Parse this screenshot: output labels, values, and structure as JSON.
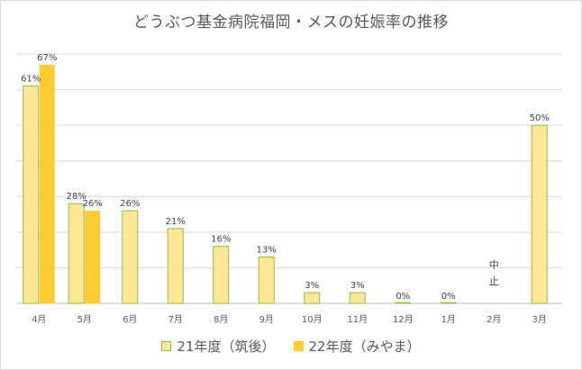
{
  "chart_data": {
    "type": "bar",
    "title": "どうぶつ基金病院福岡・メスの妊娠率の推移",
    "categories": [
      "4月",
      "5月",
      "6月",
      "7月",
      "8月",
      "9月",
      "10月",
      "11月",
      "12月",
      "1月",
      "2月",
      "3月"
    ],
    "series": [
      {
        "name": "21年度（筑後）",
        "color": "#ffe699",
        "border": "#8cbf3f",
        "values": [
          61,
          28,
          26,
          21,
          16,
          13,
          3,
          3,
          0,
          0,
          null,
          50
        ],
        "labels": [
          "61%",
          "28%",
          "26%",
          "21%",
          "16%",
          "13%",
          "3%",
          "3%",
          "0%",
          "0%",
          "",
          "50%"
        ]
      },
      {
        "name": "22年度（みやま）",
        "color": "#ffcc33",
        "values": [
          67,
          26,
          null,
          null,
          null,
          null,
          null,
          null,
          null,
          null,
          null,
          null
        ],
        "labels": [
          "67%",
          "26%",
          "",
          "",
          "",
          "",
          "",
          "",
          "",
          "",
          "",
          ""
        ]
      }
    ],
    "annotations": [
      {
        "category": "2月",
        "text": "中止"
      }
    ],
    "ylim": [
      0,
      70
    ],
    "grid": true,
    "y_tick_labels_shown": false,
    "legend_position": "bottom"
  }
}
